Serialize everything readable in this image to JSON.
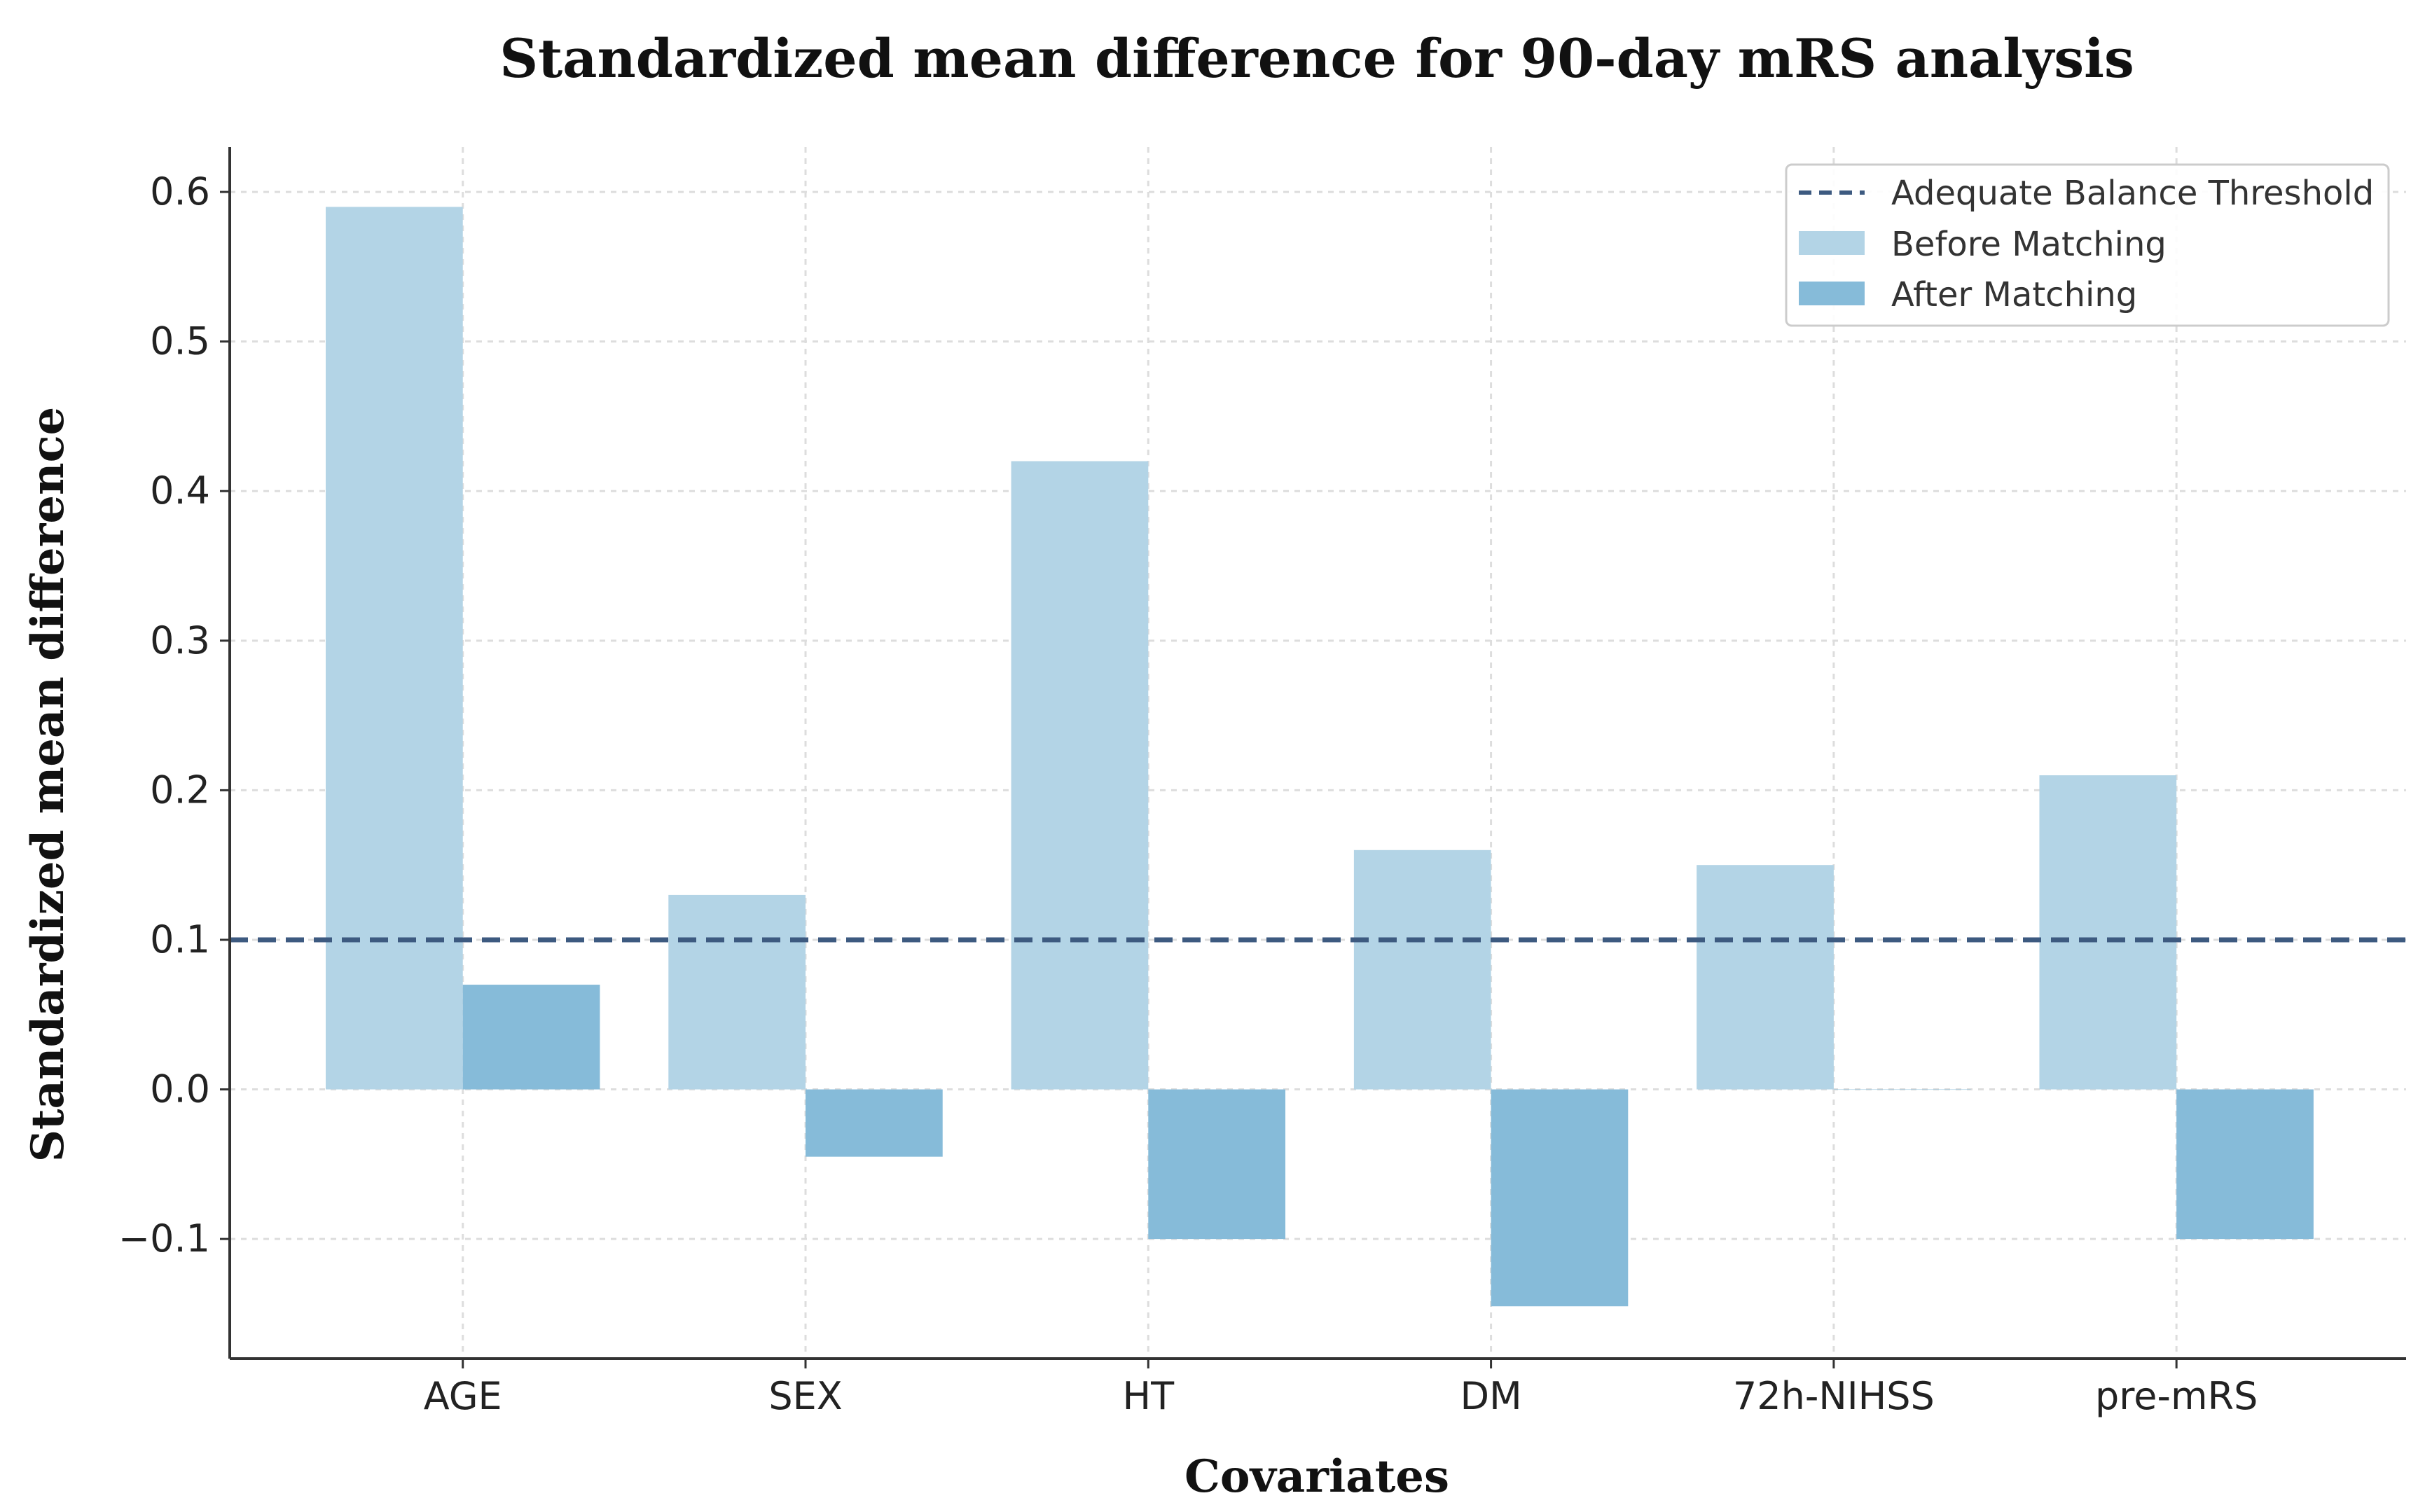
{
  "chart_data": {
    "type": "bar",
    "title": "Standardized mean difference for 90-day mRS analysis",
    "xlabel": "Covariates",
    "ylabel": "Standardized mean difference",
    "categories": [
      "AGE",
      "SEX",
      "HT",
      "DM",
      "72h-NIHSS",
      "pre-mRS"
    ],
    "series": [
      {
        "name": "Before Matching",
        "values": [
          0.59,
          0.13,
          0.42,
          0.16,
          0.15,
          0.21
        ],
        "color": "#b3d4e6"
      },
      {
        "name": "After Matching",
        "values": [
          0.07,
          -0.045,
          -0.1,
          -0.145,
          0.0,
          -0.1
        ],
        "color": "#86bbd9"
      }
    ],
    "threshold": {
      "name": "Adequate Balance Threshold",
      "value": 0.1,
      "color": "#3d5a80",
      "style": "dashed"
    },
    "ylim": [
      -0.18,
      0.63
    ],
    "yticks": [
      -0.1,
      0.0,
      0.1,
      0.2,
      0.3,
      0.4,
      0.5,
      0.6
    ],
    "ytick_labels": [
      "−0.1",
      "0.0",
      "0.1",
      "0.2",
      "0.3",
      "0.4",
      "0.5",
      "0.6"
    ],
    "grid": true,
    "legend_position": "top-right",
    "axis_color": "#333333",
    "grid_color": "#dddddd"
  }
}
